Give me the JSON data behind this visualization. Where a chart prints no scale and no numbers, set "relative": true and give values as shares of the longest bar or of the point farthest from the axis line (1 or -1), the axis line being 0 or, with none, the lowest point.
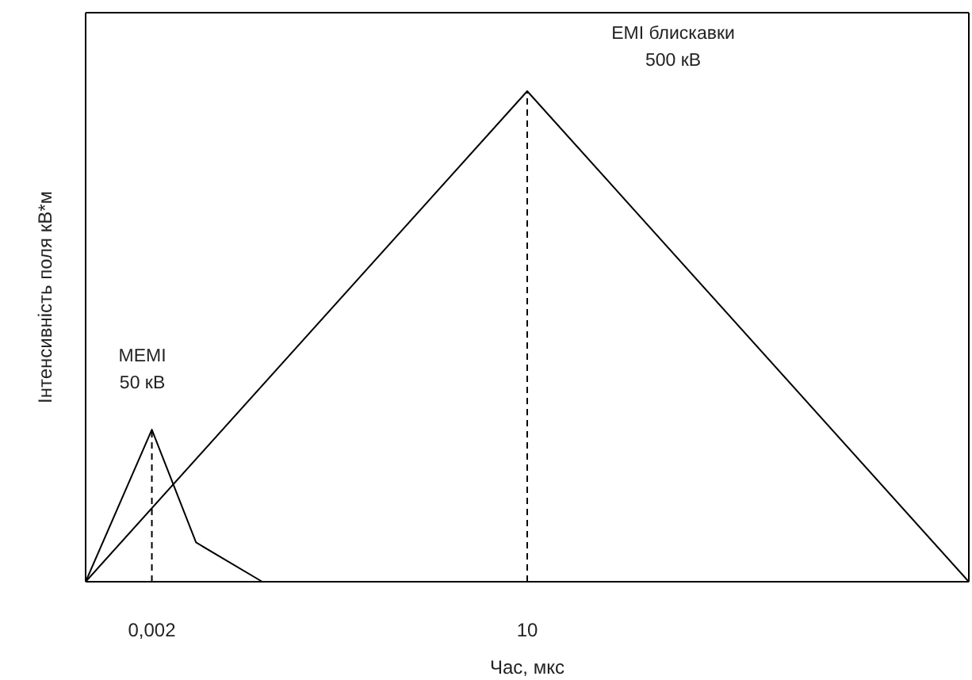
{
  "chart_data": {
    "type": "line",
    "relative": true,
    "xlabel": "Час, мкс",
    "ylabel": "Інтенсивність поля кВ*м",
    "categories": [
      null,
      null,
      null,
      "0,002",
      null,
      null,
      null,
      null,
      null,
      null,
      null,
      null,
      null,
      null,
      null,
      null,
      null,
      null,
      null,
      null,
      "10",
      null,
      null,
      null,
      null,
      null,
      null,
      null,
      null,
      null,
      null,
      null,
      null,
      null,
      null,
      null,
      null,
      null,
      null,
      null,
      null
    ],
    "series": [
      {
        "color": "#000000",
        "values": [
          0,
          null,
          null,
          0.31,
          null,
          0.08,
          null,
          null,
          0,
          null,
          null,
          null,
          null,
          null,
          null,
          null,
          null,
          null,
          null,
          null,
          null,
          null,
          null,
          null,
          null,
          null,
          null,
          null,
          null,
          null,
          null,
          null,
          null,
          null,
          null,
          null,
          null,
          null,
          null,
          null,
          null
        ]
      },
      {
        "color": "#000000",
        "values": [
          0,
          null,
          null,
          null,
          null,
          null,
          null,
          null,
          null,
          null,
          null,
          null,
          null,
          null,
          null,
          null,
          null,
          null,
          null,
          null,
          1,
          null,
          null,
          null,
          null,
          null,
          null,
          null,
          null,
          null,
          null,
          null,
          null,
          null,
          null,
          null,
          null,
          null,
          null,
          null,
          0
        ]
      }
    ],
    "ref_lines": [
      {
        "axis": "x",
        "value": "0,002",
        "line_style": "dashed",
        "color": "#000000"
      },
      {
        "axis": "x",
        "value": "10",
        "line_style": "dashed",
        "color": "#000000"
      }
    ],
    "annotations": [
      "MEMI\n50 кВ",
      "EMI блискавки\n500 кВ"
    ],
    "marker": "none",
    "line_style": "solid"
  }
}
